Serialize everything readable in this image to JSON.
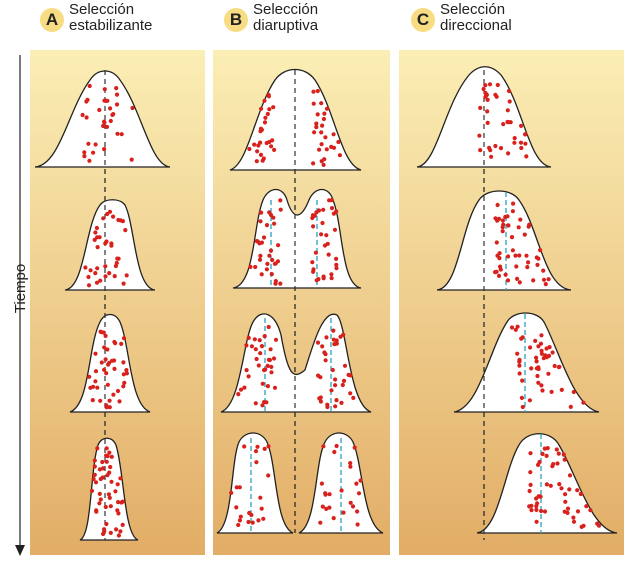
{
  "axis": {
    "time_label": "Tiempo"
  },
  "panels": [
    {
      "letter": "A",
      "title_line1": "Selección",
      "title_line2": "estabilizante"
    },
    {
      "letter": "B",
      "title_line1": "Selección",
      "title_line2": "diaruptiva"
    },
    {
      "letter": "C",
      "title_line1": "Selección",
      "title_line2": "direccional"
    }
  ],
  "colors": {
    "panel_top": "#fbeeb5",
    "panel_bottom": "#e2ad66",
    "dot": "#d8211c",
    "blue_line": "#3aa9c4",
    "badge": "#f7dc84"
  }
}
